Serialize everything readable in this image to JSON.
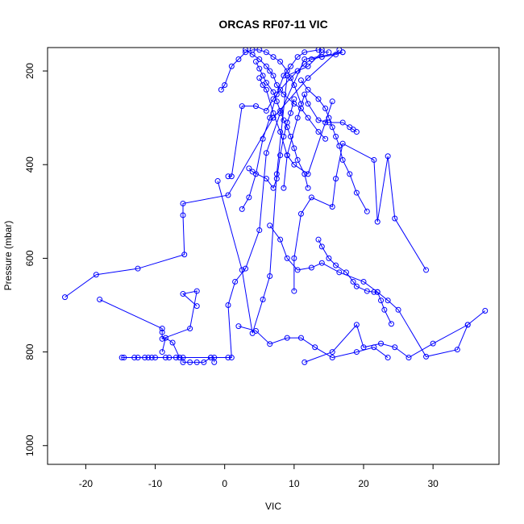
{
  "chart_data": {
    "type": "line",
    "title": "ORCAS RF07-11 VIC",
    "xlabel": "VIC",
    "ylabel": "Pressure (mbar)",
    "xlim": [
      -25.5,
      39.5
    ],
    "ylim": [
      1040,
      150
    ],
    "y_reversed": true,
    "x_ticks": [
      -20,
      -10,
      0,
      10,
      20,
      30
    ],
    "y_ticks": [
      200,
      400,
      600,
      800,
      1000
    ],
    "grid": false,
    "legend": "none",
    "series_color": "#0000ff",
    "marker": "open-circle",
    "series": [
      {
        "x": [
          -23.0,
          -18.5,
          -12.5,
          -5.8,
          -6.0,
          -6.0,
          0.5,
          7.0,
          12.0,
          16.5
        ],
        "y": [
          683,
          635,
          622,
          592,
          508,
          483,
          465,
          300,
          215,
          155
        ]
      },
      {
        "x": [
          -18.0,
          -9.0,
          -9.0,
          -9.0,
          -5.0,
          -4.0,
          -6.0,
          -4.0
        ],
        "y": [
          688,
          750,
          758,
          772,
          750,
          670,
          676,
          702
        ]
      },
      {
        "x": [
          -14.8,
          -14.5,
          -13.0,
          -12.5,
          -11.5,
          -11.0,
          -10.5,
          -10.0,
          -8.5,
          -8.0,
          -7.0,
          -6.5,
          -6.0,
          -6.0,
          -5.0,
          -4.0,
          -3.0,
          -2.0,
          -1.5,
          -1.5
        ],
        "y": [
          812,
          812,
          812,
          812,
          812,
          812,
          812,
          812,
          812,
          812,
          812,
          812,
          812,
          822,
          822,
          822,
          822,
          812,
          812,
          822
        ]
      },
      {
        "x": [
          -9.0,
          -8.5,
          -7.5,
          -6.5,
          -2.0,
          0.5,
          1.0,
          0.5,
          1.5,
          3.0,
          5.0,
          6.0,
          8.0,
          11.5,
          17.0
        ],
        "y": [
          800,
          770,
          780,
          812,
          812,
          812,
          812,
          700,
          650,
          622,
          540,
          375,
          290,
          175,
          160
        ]
      },
      {
        "x": [
          11.5,
          15.5,
          19.0,
          20.0,
          22.5,
          24.5,
          26.5,
          30.0,
          35.0,
          37.5
        ],
        "y": [
          822,
          800,
          742,
          790,
          782,
          790,
          812,
          782,
          742,
          712
        ]
      },
      {
        "x": [
          -1.0,
          2.5,
          4.0,
          5.5,
          6.5,
          7.5,
          9.0,
          12.0,
          14.0,
          15.0
        ],
        "y": [
          435,
          625,
          760,
          688,
          638,
          420,
          210,
          190,
          160,
          160
        ]
      },
      {
        "x": [
          2.0,
          4.5,
          6.5,
          9.0,
          11.0,
          13.0,
          15.5,
          19.0,
          21.5,
          23.5
        ],
        "y": [
          745,
          755,
          783,
          770,
          770,
          790,
          812,
          800,
          790,
          812
        ]
      },
      {
        "x": [
          6.5,
          8.0,
          9.0,
          10.5,
          12.5,
          14.0,
          16.5,
          20.0,
          22.0,
          23.5,
          25.0,
          29.0,
          33.5,
          35.0
        ],
        "y": [
          530,
          560,
          600,
          625,
          620,
          610,
          630,
          650,
          672,
          690,
          710,
          810,
          795,
          742
        ]
      },
      {
        "x": [
          10.0,
          10.0,
          11.0,
          12.5,
          15.5,
          16.0,
          17.0,
          21.5,
          22.0,
          23.5,
          24.5,
          29.0
        ],
        "y": [
          670,
          600,
          505,
          470,
          490,
          430,
          355,
          390,
          522,
          382,
          515,
          625
        ]
      },
      {
        "x": [
          3.5,
          4.0,
          6.0,
          7.0,
          7.5,
          8.0,
          8.5,
          9.0,
          9.5,
          10.0
        ],
        "y": [
          408,
          415,
          430,
          450,
          430,
          380,
          340,
          310,
          290,
          260
        ]
      },
      {
        "x": [
          -0.5,
          0.0,
          1.0,
          2.0,
          3.0,
          4.0,
          5.0,
          6.0,
          7.0,
          8.0,
          9.0,
          10.0,
          11.0
        ],
        "y": [
          240,
          230,
          190,
          175,
          160,
          155,
          155,
          160,
          170,
          180,
          200,
          230,
          270
        ]
      },
      {
        "x": [
          0.5,
          1.0,
          2.5,
          4.5,
          6.0,
          7.0,
          8.0,
          9.5,
          10.5,
          11.5,
          12.5,
          14.0,
          16.0,
          17.0
        ],
        "y": [
          425,
          425,
          275,
          275,
          285,
          260,
          240,
          215,
          200,
          185,
          175,
          170,
          165,
          160
        ]
      },
      {
        "x": [
          5.0,
          5.5,
          6.0,
          7.0,
          8.0,
          9.0,
          10.0,
          12.0,
          14.5,
          15.5
        ],
        "y": [
          215,
          230,
          240,
          290,
          330,
          380,
          400,
          420,
          310,
          265
        ]
      },
      {
        "x": [
          2.5,
          3.5,
          4.5,
          5.5,
          6.5,
          7.5,
          8.5,
          9.5,
          10.5,
          11.5,
          13.5,
          14.0
        ],
        "y": [
          495,
          470,
          420,
          345,
          300,
          250,
          210,
          190,
          170,
          160,
          155,
          155
        ]
      },
      {
        "x": [
          8.5,
          9.0,
          10.5,
          11.5,
          12.0,
          13.5,
          15.0,
          17.0,
          18.0,
          18.5,
          19.0
        ],
        "y": [
          450,
          380,
          300,
          250,
          270,
          305,
          310,
          310,
          320,
          325,
          330
        ]
      },
      {
        "x": [
          3.0,
          4.0,
          5.0,
          6.0,
          6.5,
          7.0,
          7.5,
          8.5,
          10.0,
          11.0,
          12.0,
          13.5,
          14.5
        ],
        "y": [
          155,
          165,
          175,
          190,
          200,
          210,
          230,
          250,
          270,
          280,
          300,
          330,
          345
        ]
      },
      {
        "x": [
          4.5,
          5.0,
          5.5,
          6.0,
          7.0,
          7.5,
          8.0,
          8.5,
          9.0,
          9.5,
          10.0,
          10.5,
          11.5,
          12.0
        ],
        "y": [
          180,
          195,
          210,
          225,
          245,
          265,
          285,
          305,
          320,
          340,
          365,
          390,
          420,
          450
        ]
      },
      {
        "x": [
          13.5,
          14.0,
          15.0,
          16.0,
          17.5,
          18.5,
          19.0,
          20.5,
          21.5,
          22.0,
          22.5,
          23.0,
          24.0
        ],
        "y": [
          560,
          575,
          600,
          615,
          630,
          650,
          660,
          670,
          672,
          672,
          690,
          710,
          740
        ]
      },
      {
        "x": [
          11.0,
          12.0,
          13.5,
          14.5,
          15.0,
          15.5,
          16.0,
          16.5,
          17.0,
          18.0,
          19.0,
          20.5
        ],
        "y": [
          220,
          240,
          260,
          280,
          300,
          320,
          340,
          360,
          390,
          420,
          460,
          500
        ]
      }
    ]
  }
}
